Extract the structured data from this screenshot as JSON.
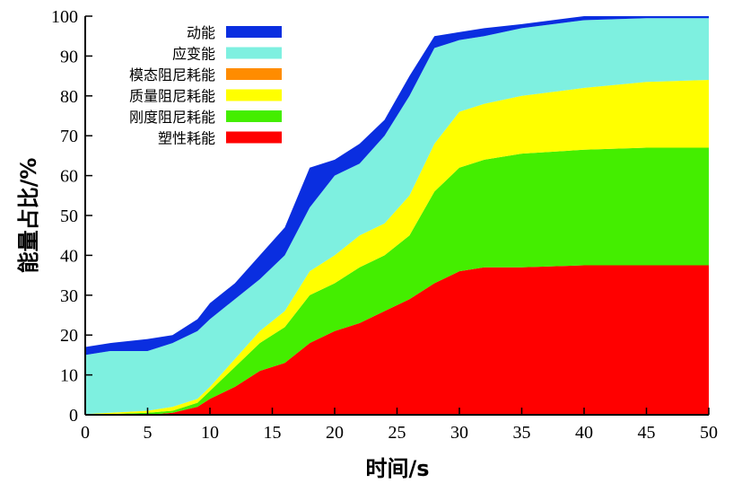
{
  "chart_data": {
    "type": "area",
    "stacked": true,
    "xlabel": "时间/s",
    "ylabel": "能量占比/%",
    "xlim": [
      0,
      50
    ],
    "ylim": [
      0,
      100
    ],
    "xticks": [
      0,
      5,
      10,
      15,
      20,
      25,
      30,
      35,
      40,
      45,
      50
    ],
    "yticks": [
      0,
      10,
      20,
      30,
      40,
      50,
      60,
      70,
      80,
      90,
      100
    ],
    "grid": false,
    "legend_position": "top-left",
    "x": [
      0,
      2,
      5,
      7,
      9,
      10,
      12,
      14,
      16,
      18,
      20,
      22,
      24,
      26,
      28,
      30,
      32,
      35,
      40,
      45,
      50
    ],
    "series": [
      {
        "name": "塑性耗能",
        "color": "#ff0000",
        "values": [
          0,
          0,
          0,
          0.5,
          2,
          4,
          7,
          11,
          13,
          18,
          21,
          23,
          26,
          29,
          33,
          36,
          37,
          37,
          37.5,
          37.5,
          37.5
        ]
      },
      {
        "name": "刚度阻尼耗能",
        "color": "#44ee00",
        "values": [
          0,
          0.2,
          0.5,
          0.5,
          1,
          2,
          5,
          7,
          9,
          12,
          12,
          14,
          14,
          16,
          23,
          26,
          27,
          28.5,
          29,
          29.5,
          29.5
        ]
      },
      {
        "name": "质量阻尼耗能",
        "color": "#ffff00",
        "values": [
          0.2,
          0.3,
          0.5,
          1,
          1,
          1,
          2,
          3,
          4,
          6,
          7,
          8,
          8,
          10,
          12,
          14,
          14,
          14.5,
          15.5,
          16.5,
          17
        ]
      },
      {
        "name": "模态阻尼耗能",
        "color": "#ff8c00",
        "values": [
          0,
          0,
          0,
          0,
          0,
          0,
          0,
          0,
          0,
          0,
          0,
          0,
          0,
          0,
          0,
          0,
          0,
          0,
          0,
          0,
          0
        ]
      },
      {
        "name": "应变能",
        "color": "#7ef0e0",
        "values": [
          14.8,
          15.5,
          15,
          16,
          17,
          17,
          15,
          13,
          14,
          16,
          20,
          18,
          22,
          25,
          24,
          18,
          17,
          17,
          17,
          16,
          15.5
        ]
      },
      {
        "name": "动能",
        "color": "#0a2ee0",
        "values": [
          2,
          2,
          3,
          2,
          3,
          4,
          4,
          6,
          7,
          10,
          4,
          5,
          4,
          5,
          3,
          2,
          2,
          1,
          1,
          0.5,
          0.5
        ]
      }
    ],
    "legend_order": [
      "动能",
      "应变能",
      "模态阻尼耗能",
      "质量阻尼耗能",
      "刚度阻尼耗能",
      "塑性耗能"
    ]
  }
}
